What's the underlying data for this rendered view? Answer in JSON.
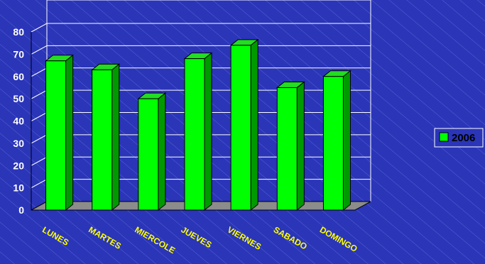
{
  "chart_data": {
    "type": "bar",
    "title": "",
    "xlabel": "",
    "ylabel": "",
    "categories": [
      "LUNES",
      "MARTES",
      "MIERCOLE",
      "JUEVES",
      "VIERNES",
      "SABADO",
      "DOMINGO"
    ],
    "series": [
      {
        "name": "2006",
        "values": [
          67,
          63,
          50,
          68,
          74,
          55,
          60
        ]
      }
    ],
    "ylim": [
      0,
      80
    ],
    "yticks": [
      0,
      10,
      20,
      30,
      40,
      50,
      60,
      70,
      80
    ],
    "grid": true,
    "legend_position": "right",
    "style": "3d-bars"
  },
  "colors": {
    "background": "#2a35b8",
    "bar_front": "#00ff00",
    "bar_side": "#009900",
    "bar_top": "#22dd22",
    "floor": "#8c8c8c",
    "gridline": "#ffffff",
    "tick_label": "#ffffff",
    "category_label": "#ffff00"
  }
}
